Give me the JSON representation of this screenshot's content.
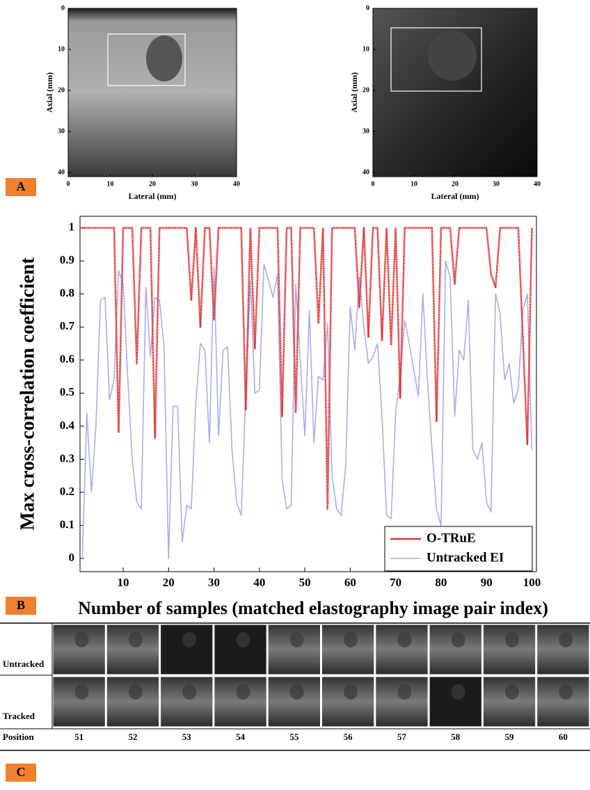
{
  "chart_data": [
    {
      "type": "image",
      "xlabel": "Lateral (mm)",
      "ylabel": "Axial (mm)",
      "xlim": [
        0,
        40
      ],
      "ylim": [
        0,
        41
      ],
      "xticks": [
        0,
        10,
        20,
        30,
        40
      ],
      "yticks": [
        0,
        10,
        20,
        30,
        40
      ]
    },
    {
      "type": "image",
      "xlabel": "Lateral (mm)",
      "ylabel": "Axial (mm)",
      "xlim": [
        0,
        40
      ],
      "ylim": [
        0,
        41
      ],
      "xticks": [
        0,
        10,
        20,
        30,
        40
      ],
      "yticks": [
        0,
        10,
        20,
        30,
        40
      ]
    },
    {
      "type": "line",
      "xlabel": "Number of samples (matched elastography image pair index)",
      "ylabel": "Max cross-correlation coefficient",
      "xlim": [
        0.5,
        101
      ],
      "ylim": [
        -0.04,
        1.035
      ],
      "xticks": [
        10,
        20,
        30,
        40,
        50,
        60,
        70,
        80,
        90,
        100
      ],
      "yticks": [
        0,
        0.1,
        0.2,
        0.3,
        0.4,
        0.5,
        0.6,
        0.7,
        0.8,
        0.9,
        1
      ],
      "legend": "lower right",
      "x": [
        1,
        2,
        3,
        4,
        5,
        6,
        7,
        8,
        9,
        10,
        11,
        12,
        13,
        14,
        15,
        16,
        17,
        18,
        19,
        20,
        21,
        22,
        23,
        24,
        25,
        26,
        27,
        28,
        29,
        30,
        31,
        32,
        33,
        34,
        35,
        36,
        37,
        38,
        39,
        40,
        41,
        42,
        43,
        44,
        45,
        46,
        47,
        48,
        49,
        50,
        51,
        52,
        53,
        54,
        55,
        56,
        57,
        58,
        59,
        60,
        61,
        62,
        63,
        64,
        65,
        66,
        67,
        68,
        69,
        70,
        71,
        72,
        73,
        74,
        75,
        76,
        77,
        78,
        79,
        80,
        81,
        82,
        83,
        84,
        85,
        86,
        87,
        88,
        89,
        90,
        91,
        92,
        93,
        94,
        95,
        96,
        97,
        98,
        99,
        100
      ],
      "series": [
        {
          "name": "O-TRuE",
          "color": "#e03232",
          "values": [
            1,
            1,
            1,
            1,
            1,
            1,
            1,
            1,
            0.38,
            1,
            1,
            1,
            0.59,
            1,
            1,
            1,
            0.365,
            1,
            1,
            1,
            1,
            1,
            1,
            1,
            0.78,
            1,
            0.7,
            1,
            1,
            0.72,
            1,
            1,
            1,
            1,
            1,
            1,
            0.45,
            1,
            0.635,
            1,
            1,
            1,
            1,
            1,
            0.43,
            1,
            1,
            0.44,
            1,
            1,
            1,
            1,
            0.71,
            1,
            0.15,
            1,
            1,
            1,
            1,
            1,
            1,
            0.76,
            1,
            0.67,
            1,
            1,
            0.66,
            1,
            0.645,
            1,
            0.485,
            1,
            1,
            1,
            1,
            1,
            1,
            1,
            0.415,
            1,
            1,
            1,
            0.83,
            1,
            1,
            1,
            1,
            1,
            1,
            1,
            0.86,
            0.82,
            1,
            1,
            1,
            1,
            1,
            0.67,
            0.345,
            1
          ]
        },
        {
          "name": "Untracked EI",
          "color": "#aaaaf0",
          "values": [
            0,
            0.44,
            0.2,
            0.4,
            0.78,
            0.79,
            0.48,
            0.54,
            0.87,
            0.83,
            0.55,
            0.3,
            0.17,
            0.15,
            0.82,
            0.61,
            0.79,
            0.78,
            0.64,
            0,
            0.46,
            0.46,
            0.05,
            0.16,
            0.15,
            0.47,
            0.65,
            0.63,
            0.35,
            0.88,
            0.37,
            0.63,
            0.64,
            0.32,
            0.17,
            0.13,
            0.5,
            0.84,
            0.5,
            0.51,
            0.89,
            0.84,
            0.79,
            0.86,
            0.24,
            0.15,
            0.16,
            0.83,
            0.6,
            0.37,
            0.75,
            0.35,
            0.55,
            0.54,
            0.71,
            0.25,
            0.15,
            0.13,
            0.28,
            0.76,
            0.63,
            0.85,
            0.7,
            0.59,
            0.61,
            0.65,
            0.43,
            0.13,
            0.12,
            0.44,
            0.55,
            0.72,
            0.65,
            0.57,
            0.49,
            0.8,
            0.54,
            0.33,
            0.15,
            0.1,
            0.9,
            0.85,
            0.43,
            0.63,
            0.6,
            0.78,
            0.33,
            0.3,
            0.35,
            0.17,
            0.14,
            0.8,
            0.74,
            0.54,
            0.59,
            0.47,
            0.51,
            0.75,
            0.8,
            0.33
          ]
        }
      ]
    }
  ],
  "panel_labels": [
    "A",
    "B",
    "C"
  ],
  "table": {
    "row_labels": [
      "Untracked",
      "Tracked"
    ],
    "position_label": "Position",
    "columns": [
      51,
      52,
      53,
      54,
      55,
      56,
      57,
      58,
      59,
      60
    ]
  }
}
